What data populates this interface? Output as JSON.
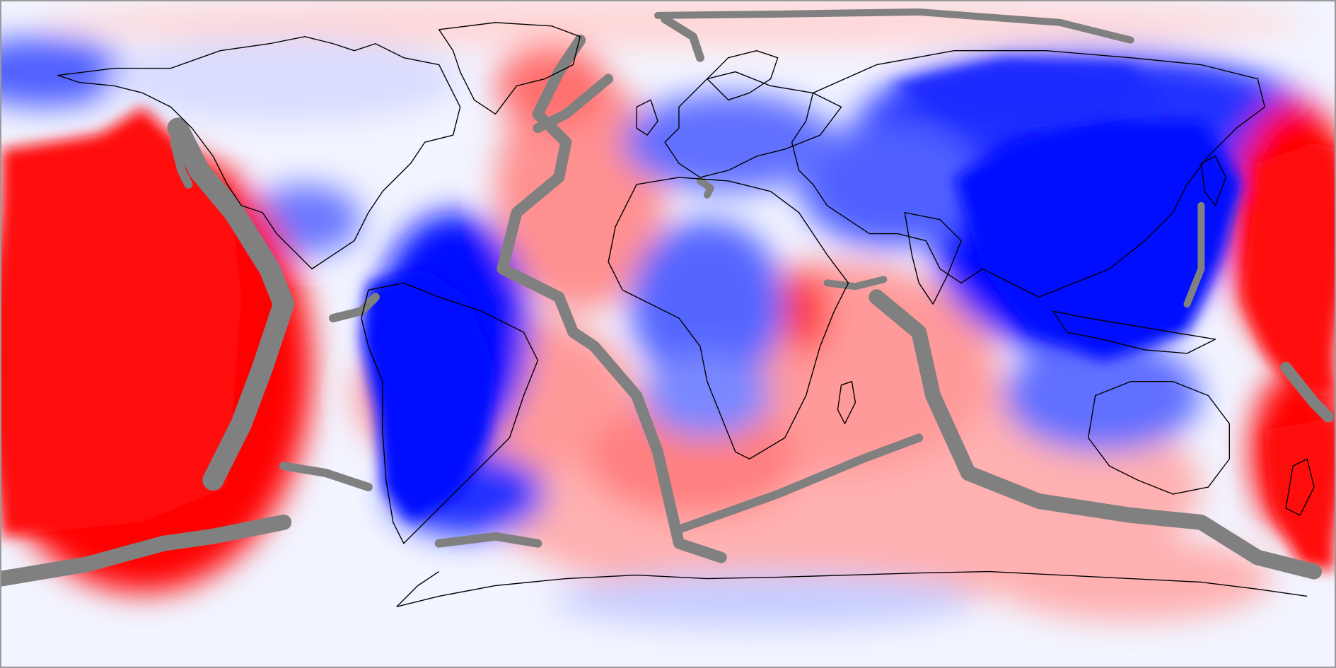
{
  "map": {
    "projection": "equirectangular",
    "colormap": {
      "negative": "#0000ff",
      "neutral": "#f2f4ff",
      "positive": "#ff0000",
      "masked": "#808080",
      "coastline": "#000000",
      "frame": "#9a9a9a"
    },
    "background_color": "#f2f4ff"
  }
}
